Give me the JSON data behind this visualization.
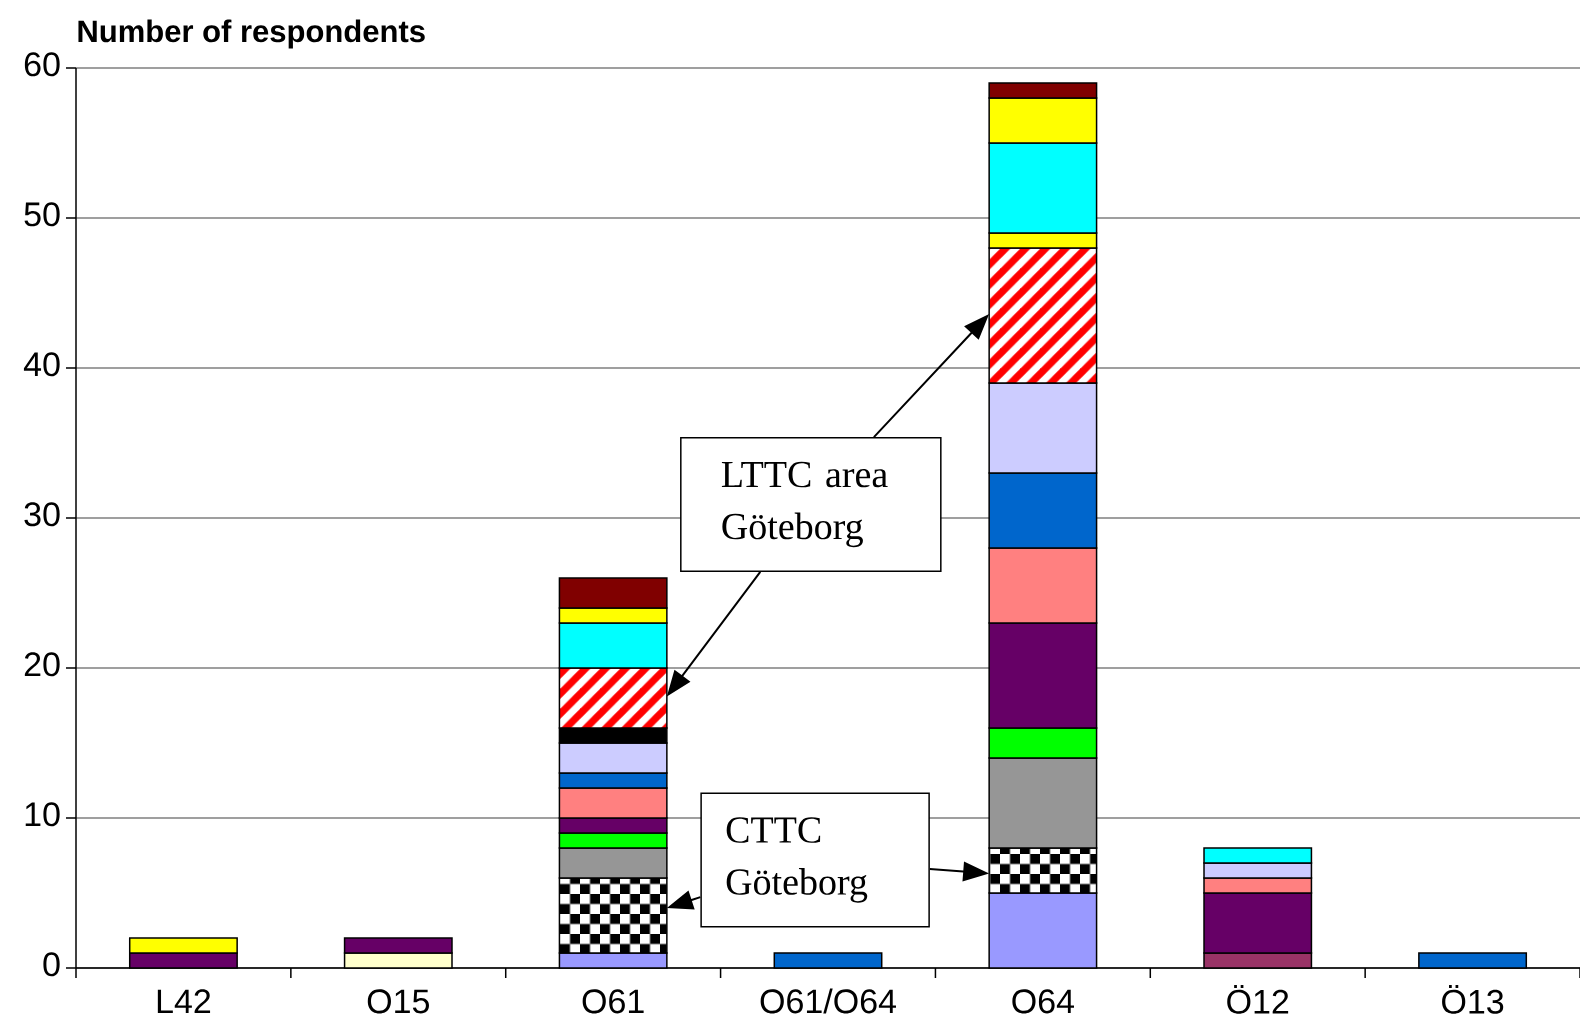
{
  "chart_data": {
    "type": "bar",
    "stacked": true,
    "ylabel": "Number of respondents",
    "categories": [
      "L42",
      "O15",
      "O61",
      "O61/O64",
      "O64",
      "Ö12",
      "Ö13"
    ],
    "ylim": [
      0,
      60
    ],
    "yticks": [
      0,
      10,
      20,
      30,
      40,
      50,
      60
    ],
    "grid": "y",
    "series": [
      {
        "color": "#9999ff",
        "values": [
          null,
          null,
          1,
          null,
          5,
          null,
          null
        ]
      },
      {
        "color": "#993366",
        "values": [
          null,
          null,
          null,
          null,
          null,
          1,
          null
        ]
      },
      {
        "color": "#ffffcc",
        "values": [
          null,
          1,
          null,
          null,
          null,
          null,
          null
        ]
      },
      {
        "color": "#000000",
        "values": [
          null,
          null,
          5,
          null,
          3,
          null,
          null
        ]
      },
      {
        "color": "#969696",
        "values": [
          null,
          null,
          2,
          null,
          6,
          null,
          null
        ]
      },
      {
        "color": "#00ff00",
        "values": [
          null,
          null,
          1,
          null,
          2,
          null,
          null
        ]
      },
      {
        "color": "#660066",
        "values": [
          1,
          1,
          1,
          null,
          7,
          4,
          null
        ]
      },
      {
        "color": "#ff8080",
        "values": [
          null,
          null,
          2,
          null,
          5,
          1,
          null
        ]
      },
      {
        "color": "#0066cc",
        "values": [
          null,
          null,
          1,
          1,
          5,
          null,
          1
        ]
      },
      {
        "color": "#ccccff",
        "values": [
          null,
          null,
          2,
          null,
          6,
          1,
          null
        ]
      },
      {
        "color": "#000000",
        "values": [
          null,
          null,
          1,
          null,
          null,
          null,
          null
        ]
      },
      {
        "color": "#ff0000",
        "values": [
          null,
          null,
          4,
          null,
          9,
          null,
          null
        ]
      },
      {
        "color": "#ffff00",
        "values": [
          null,
          null,
          null,
          null,
          1,
          null,
          null
        ]
      },
      {
        "color": "#00ffff",
        "values": [
          null,
          null,
          3,
          null,
          6,
          1,
          null
        ]
      },
      {
        "color": "#ffff00",
        "values": [
          1,
          null,
          1,
          null,
          3,
          null,
          null
        ]
      },
      {
        "color": "#800000",
        "values": [
          null,
          null,
          2,
          null,
          1,
          null,
          null
        ]
      }
    ],
    "annotations": [
      "LTTC area Göteborg",
      "CTTC Göteborg"
    ]
  }
}
